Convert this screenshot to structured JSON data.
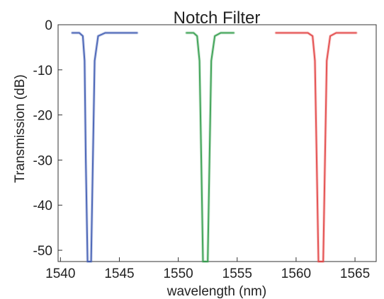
{
  "chart_data": {
    "type": "line",
    "title": "Notch Filter",
    "xlabel": "wavelength (nm)",
    "ylabel": "Transmission (dB)",
    "xlim": [
      1539.8,
      1566.8
    ],
    "ylim": [
      -52.5,
      0
    ],
    "xticks": [
      "1540",
      "1545",
      "1550",
      "1555",
      "1560",
      "1565"
    ],
    "yticks": [
      "0",
      "-10",
      "-20",
      "-30",
      "-40",
      "-50"
    ],
    "grid": false,
    "legend": "none",
    "series": [
      {
        "color": "#3a57b0",
        "x": [
          1541.0,
          1541.6,
          1541.9,
          1542.05,
          1542.15,
          1542.3,
          1542.45,
          1542.6,
          1542.75,
          1542.9,
          1543.2,
          1543.8,
          1546.5
        ],
        "y": [
          -1.8,
          -1.8,
          -2.5,
          -8,
          -30,
          -52.5,
          -52.5,
          -52.5,
          -30,
          -8,
          -2.5,
          -1.8,
          -1.8
        ]
      },
      {
        "color": "#2e9a48",
        "x": [
          1550.7,
          1551.3,
          1551.6,
          1551.8,
          1551.95,
          1552.1,
          1552.3,
          1552.5,
          1552.65,
          1552.8,
          1553.1,
          1553.6,
          1554.7
        ],
        "y": [
          -1.8,
          -1.8,
          -2.5,
          -8,
          -30,
          -52.5,
          -52.5,
          -52.5,
          -30,
          -8,
          -2.5,
          -1.8,
          -1.8
        ]
      },
      {
        "color": "#e2403f",
        "x": [
          1558.3,
          1561.0,
          1561.4,
          1561.6,
          1561.75,
          1561.9,
          1562.1,
          1562.3,
          1562.45,
          1562.6,
          1562.9,
          1563.4,
          1565.1
        ],
        "y": [
          -1.8,
          -1.8,
          -2.5,
          -8,
          -30,
          -52.5,
          -52.5,
          -52.5,
          -30,
          -8,
          -2.5,
          -1.8,
          -1.8
        ]
      }
    ]
  }
}
